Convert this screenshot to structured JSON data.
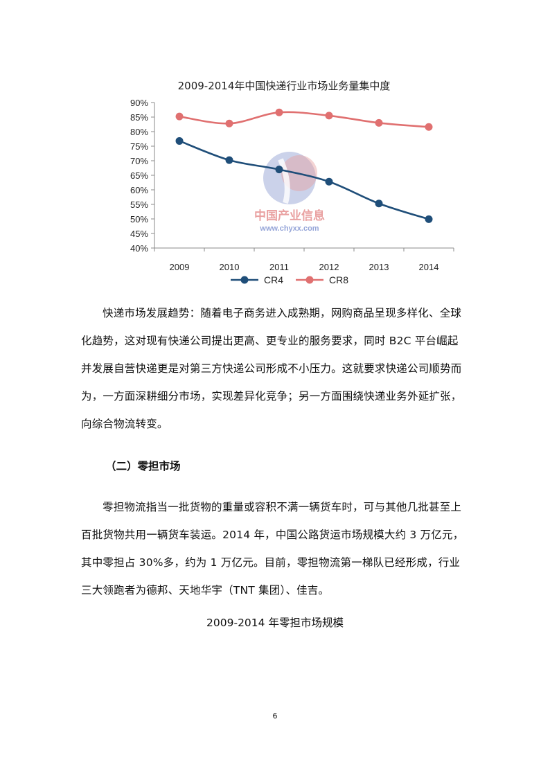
{
  "chart_data": {
    "type": "line",
    "title": "2009-2014年中国快递行业市场业务量集中度",
    "categories": [
      "2009",
      "2010",
      "2011",
      "2012",
      "2013",
      "2014"
    ],
    "series": [
      {
        "name": "CR4",
        "values": [
          76.8,
          70.2,
          67.0,
          62.8,
          55.3,
          49.9
        ],
        "color": "#1f4e79"
      },
      {
        "name": "CR8",
        "values": [
          85.2,
          82.8,
          86.6,
          85.5,
          83.0,
          81.6
        ],
        "color": "#e07070"
      }
    ],
    "ylim": [
      40,
      90
    ],
    "yticks": [
      "40%",
      "45%",
      "50%",
      "55%",
      "60%",
      "65%",
      "70%",
      "75%",
      "80%",
      "85%",
      "90%"
    ],
    "legend": "bottom-left",
    "grid": false
  },
  "watermark": {
    "text_cn": "中国产业信息",
    "url": "www.chyxx.com"
  },
  "para1": {
    "lines": [
      "快递市场发展趋势：随着电子商务进入成熟期，网购商品呈现多样化、全球",
      "化趋势，这对现有快递公司提出更高、更专业的服务要求，同时 B2C 平台崛起",
      "并发展自营快递更是对第三方快递公司形成不小压力。这就要求快递公司顺势而",
      "为，一方面深耕细分市场，实现差异化竞争；另一方面围绕快递业务外延扩张，",
      "向综合物流转变。"
    ]
  },
  "section_heading": "（二）零担市场",
  "para2": {
    "lines": [
      "零担物流指当一批货物的重量或容积不满一辆货车时，可与其他几批甚至上",
      "百批货物共用一辆货车装运。2014 年，中国公路货运市场规模大约 3 万亿元，",
      "其中零担占 30%多，约为 1 万亿元。目前，零担物流第一梯队已经形成，行业",
      "三大领跑者为德邦、天地华宇（TNT 集团）、佳吉。"
    ]
  },
  "caption": "2009-2014 年零担市场规模",
  "page_number": "6"
}
